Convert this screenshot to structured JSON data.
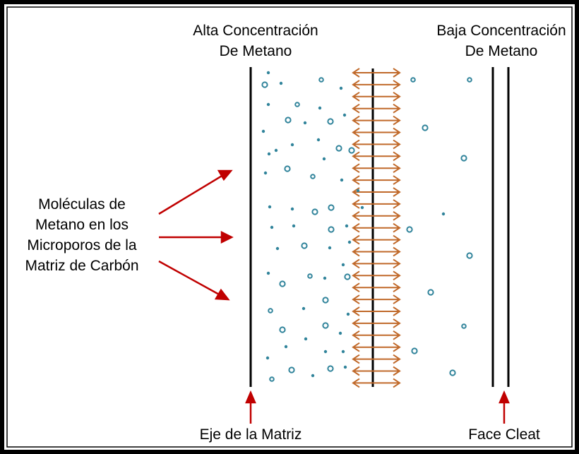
{
  "labels": {
    "high_concentration": [
      "Alta Concentración",
      "De Metano"
    ],
    "low_concentration": [
      "Baja Concentración",
      "De Metano"
    ],
    "molecules": [
      "Moléculas de",
      "Metano en los",
      "Microporos de la",
      "Matriz de Carbón"
    ],
    "matrix_axis": "Eje de la Matriz",
    "face_cleat": "Face Cleat"
  },
  "colors": {
    "frame": "#000000",
    "line": "#000000",
    "red_arrow": "#c00000",
    "diffusion_arrow": "#c0692a",
    "molecule": "#31849b"
  }
}
